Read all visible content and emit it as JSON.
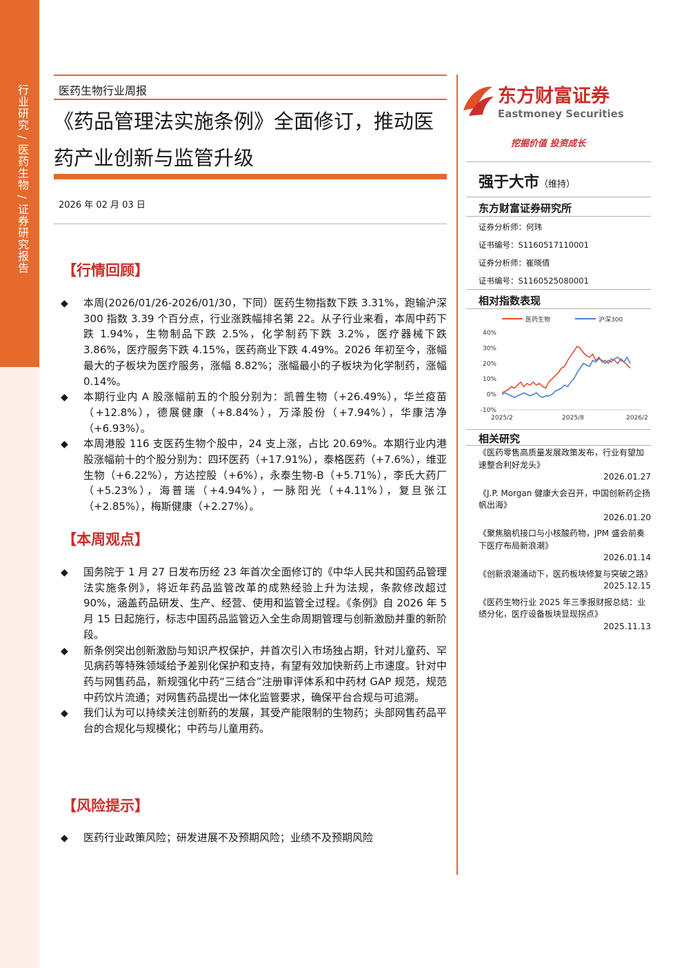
{
  "sidebar": {
    "text": "行业研究 / 医药生物 / 证券研究报告"
  },
  "header": {
    "report_type": "医药生物行业周报",
    "title": "《药品管理法实施条例》全面修订，推动医药产业创新与监管升级",
    "date": "2026 年 02 月 03 日"
  },
  "sections": [
    {
      "heading": "【行情回顾】",
      "bullets": [
        "本周(2026/01/26-2026/01/30，下同）医药生物指数下跌 3.31%，跑输沪深 300 指数 3.39 个百分点，行业涨跌幅排名第 22。从子行业来看，本周中药下跌 1.94%，生物制品下跌 2.5%，化学制药下跌 3.2%，医疗器械下跌 3.86%，医疗服务下跌 4.15%，医药商业下跌 4.49%。2026 年初至今，涨幅最大的子板块为医疗服务，涨幅 8.82%；涨幅最小的子板块为化学制药，涨幅 0.14%。",
        "本期行业内 A 股涨幅前五的个股分别为：凯普生物（+26.49%），华兰疫苗（+12.8%），德展健康（+8.84%），万泽股份（+7.94%），华康洁净（+6.93%）。",
        "本周港股 116 支医药生物个股中，24 支上涨，占比 20.69%。本期行业内港股涨幅前十的个股分别为：四环医药（+17.91%），泰格医药（+7.6%），维亚生物（+6.22%），方达控股（+6%），永泰生物-B（+5.71%），李氏大药厂（+5.23%），海普瑞（+4.94%），一脉阳光（+4.11%），复旦张江（+2.85%），梅斯健康（+2.27%）。"
      ]
    },
    {
      "heading": "【本周观点】",
      "bullets": [
        "国务院于 1 月 27 日发布历经 23 年首次全面修订的《中华人民共和国药品管理法实施条例》，将近年药品监管改革的成熟经验上升为法规，条款修改超过 90%，涵盖药品研发、生产、经营、使用和监管全过程。《条例》自 2026 年 5 月 15 日起施行，标志中国药品监管迈入全生命周期管理与创新激励并重的新阶段。",
        "新条例突出创新激励与知识产权保护，并首次引入市场独占期，针对儿童药、罕见病药等特殊领域给予差别化保护和支持，有望有效加快新药上市速度。针对中药与网售药品，新规强化中药“三结合”注册审评体系和中药材 GAP 规范，规范中药饮片流通；对网售药品提出一体化监管要求，确保平台合规与可追溯。",
        "我们认为可以持续关注创新药的发展，其受产能限制的生物药；头部网售药品平台的合规化与规模化；中药与儿童用药。"
      ]
    },
    {
      "heading": "【风险提示】",
      "bullets": [
        "医药行业政策风险；研发进展不及预期风险；业绩不及预期风险"
      ]
    }
  ],
  "side": {
    "brand_cn": "东方财富证券",
    "brand_en": "Eastmoney Securities",
    "slogan": "挖掘价值 投资成长",
    "rating": "强于大市",
    "rating_note": "（维持）",
    "institute": "东方财富证券研究所",
    "analysts": [
      "证券分析师：何玮",
      "证书编号：S1160517110001",
      "证券分析师：崔晓倩",
      "证书编号：S1160525080001"
    ],
    "chart_heading": "相对指数表现",
    "research_heading": "相关研究",
    "research": [
      {
        "title": "《医药零售高质量发展政策发布，行业有望加速整合利好龙头》",
        "date": "2026.01.27"
      },
      {
        "title": "《J.P. Morgan 健康大会召开，中国创新药企扬帆出海》",
        "date": "2026.01.20"
      },
      {
        "title": "《聚焦脑机接口与小核酸药物，JPM 盛会前奏下医疗布局新浪潮》",
        "date": "2026.01.14"
      },
      {
        "title": "《创新浪潮涌动下，医药板块修复与突破之路》",
        "date": "2025.12.15"
      },
      {
        "title": "《医药生物行业 2025 年三季报财报总结：业绩分化，医疗设备板块显现拐点》",
        "date": "2025.11.13"
      }
    ]
  },
  "chart_data": {
    "type": "line",
    "title": "",
    "x_ticks": [
      "2025/2",
      "2025/8",
      "2026/2"
    ],
    "y_ticks": [
      "40%",
      "30%",
      "20%",
      "10%",
      "0%",
      "-10%"
    ],
    "ylim": [
      -10,
      40
    ],
    "legend_position": "top",
    "colors": {
      "医药生物": "#e0502a",
      "沪深300": "#4a7fd0"
    },
    "series": [
      {
        "name": "医药生物",
        "values": [
          1,
          2,
          3,
          5,
          4,
          6,
          8,
          5,
          7,
          6,
          8,
          6,
          7,
          5,
          4,
          8,
          10,
          12,
          14,
          17,
          18,
          22,
          25,
          28,
          31,
          30,
          27,
          25,
          24,
          26,
          22,
          24,
          21,
          22,
          20,
          23,
          22,
          20,
          23,
          21,
          19,
          17
        ]
      },
      {
        "name": "沪深300",
        "values": [
          0,
          1,
          0,
          -1,
          -2,
          -1,
          0,
          1,
          0,
          -1,
          0,
          1,
          -1,
          -2,
          -1,
          -1,
          0,
          2,
          3,
          4,
          6,
          5,
          8,
          10,
          14,
          17,
          20,
          19,
          18,
          22,
          21,
          23,
          22,
          20,
          22,
          21,
          23,
          24,
          22,
          21,
          24,
          20
        ]
      }
    ]
  }
}
